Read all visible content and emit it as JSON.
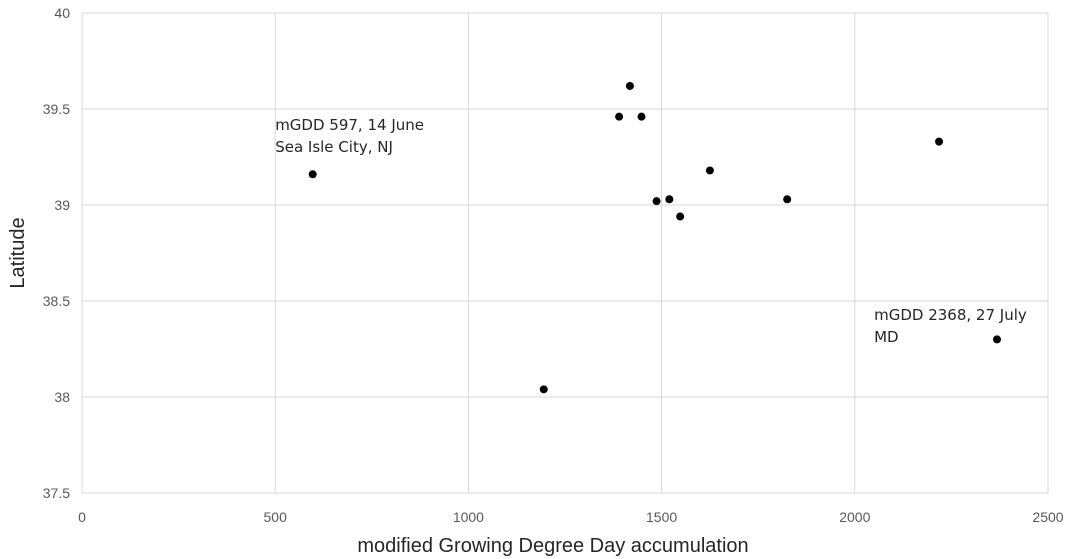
{
  "chart_data": {
    "type": "scatter",
    "title": "",
    "xlabel": "modified Growing Degree Day accumulation",
    "ylabel": "Latitude",
    "xlim": [
      0,
      2500
    ],
    "ylim": [
      37.5,
      40
    ],
    "xticks": [
      0,
      500,
      1000,
      1500,
      2000,
      2500
    ],
    "yticks": [
      37.5,
      38,
      38.5,
      39,
      39.5,
      40
    ],
    "grid": true,
    "legend": "none",
    "point_color": "#000000",
    "points": [
      {
        "x": 597,
        "y": 39.16
      },
      {
        "x": 1195,
        "y": 38.04
      },
      {
        "x": 1390,
        "y": 39.46
      },
      {
        "x": 1418,
        "y": 39.62
      },
      {
        "x": 1448,
        "y": 39.46
      },
      {
        "x": 1487,
        "y": 39.02
      },
      {
        "x": 1520,
        "y": 39.03
      },
      {
        "x": 1548,
        "y": 38.94
      },
      {
        "x": 1625,
        "y": 39.18
      },
      {
        "x": 1825,
        "y": 39.03
      },
      {
        "x": 2218,
        "y": 39.33
      },
      {
        "x": 2368,
        "y": 38.3
      }
    ],
    "annotations": [
      {
        "lines": [
          "mGDD 597, 14 June",
          "Sea Isle City, NJ"
        ],
        "x": 500,
        "y": 39.39
      },
      {
        "lines": [
          "mGDD 2368, 27 July",
          "MD"
        ],
        "x": 2050,
        "y": 38.4
      }
    ]
  }
}
